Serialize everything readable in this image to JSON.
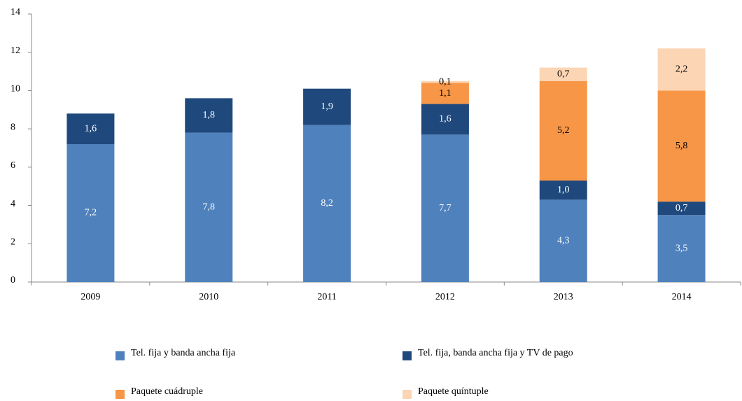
{
  "chart_data": {
    "type": "stacked_bar",
    "categories": [
      "2009",
      "2010",
      "2011",
      "2012",
      "2013",
      "2014"
    ],
    "series": [
      {
        "name": "Tel. fija y banda ancha fija",
        "color": "#4f81bd",
        "values": [
          7.2,
          7.8,
          8.2,
          7.7,
          4.3,
          3.5
        ],
        "value_labels": [
          "7,2",
          "7,8",
          "8,2",
          "7,7",
          "4,3",
          "3,5"
        ]
      },
      {
        "name": "Tel. fija, banda ancha fija y TV de pago",
        "color": "#1f497d",
        "values": [
          1.6,
          1.8,
          1.9,
          1.6,
          1.0,
          0.7
        ],
        "value_labels": [
          "1,6",
          "1,8",
          "1,9",
          "1,6",
          "1,0",
          "0,7"
        ]
      },
      {
        "name": "Paquete cuádruple",
        "color": "#f79646",
        "values": [
          null,
          null,
          null,
          1.1,
          5.2,
          5.8
        ],
        "value_labels": [
          null,
          null,
          null,
          "1,1",
          "5,2",
          "5,8"
        ]
      },
      {
        "name": "Paquete quíntuple",
        "color": "#fcd5b4",
        "values": [
          null,
          null,
          null,
          0.1,
          0.7,
          2.2
        ],
        "value_labels": [
          null,
          null,
          null,
          "0,1",
          "0,7",
          "2,2"
        ]
      }
    ],
    "ylim": [
      0,
      14
    ],
    "yticks": [
      0,
      2,
      4,
      6,
      8,
      10,
      12,
      14
    ]
  }
}
